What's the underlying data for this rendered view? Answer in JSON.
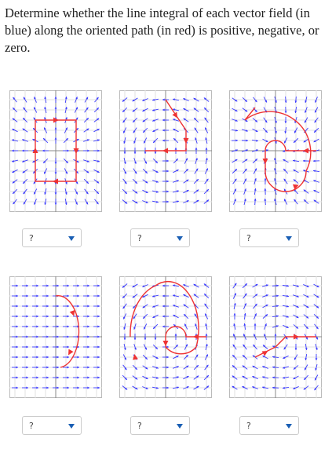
{
  "question": "Determine whether the line integral of each vector field (in blue) along the oriented path (in red) is positive, negative, or zero.",
  "answers": [
    {
      "placeholder": "?"
    },
    {
      "placeholder": "?"
    },
    {
      "placeholder": "?"
    },
    {
      "placeholder": "?"
    },
    {
      "placeholder": "?"
    },
    {
      "placeholder": "?"
    }
  ]
}
